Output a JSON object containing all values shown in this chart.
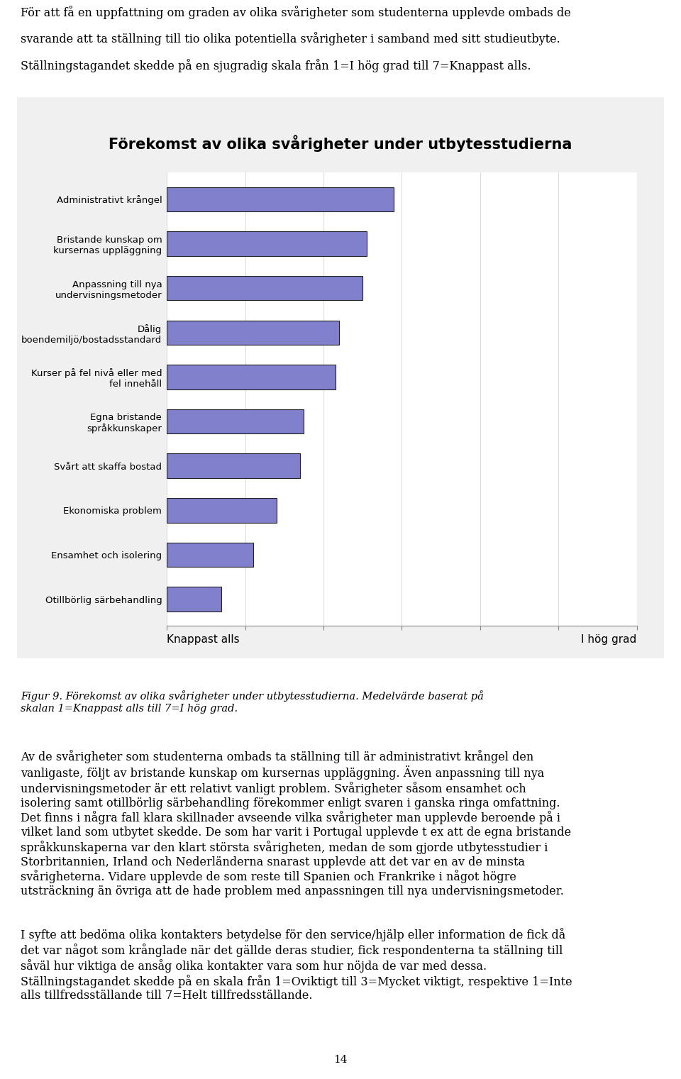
{
  "title": "Förekomst av olika svårigheter under utbytesstudierna",
  "categories": [
    "Administrativt krångel",
    "Bristande kunskap om\nkursernas uppläggning",
    "Anpassning till nya\nundervisningsmetoder",
    "Dålig\nboendemiljö/bostadsstandard",
    "Kurser på fel nivå eller med\nfel innehåll",
    "Egna bristande\nspråkkunskaper",
    "Svårt att skaffa bostad",
    "Ekonomiska problem",
    "Ensamhet och isolering",
    "Otillbörlig särbehandling"
  ],
  "values": [
    3.9,
    3.55,
    3.5,
    3.2,
    3.15,
    2.75,
    2.7,
    2.4,
    2.1,
    1.7
  ],
  "xlim": [
    1,
    7
  ],
  "xlabel_left": "Knappast alls",
  "xlabel_right": "I hög grad",
  "bar_color": "#8080CC",
  "bar_edgecolor": "#222222",
  "background_color": "#ffffff",
  "title_fontsize": 15,
  "label_fontsize": 10,
  "tick_fontsize": 10,
  "text_above_line1": "För att få en uppfattning om graden av olika svårigheter som studenterna upplevde ombads de",
  "text_above_line2": "svarande att ta ställning till tio olika potentiella svårigheter i samband med sitt studieutbyte.",
  "text_above_line3": "Ställningstagandet skedde på en sjugradig skala från 1=I hög grad till 7=Knappast alls.",
  "text_below_italic": "Figur 9. Förekomst av olika svårigheter under utbytesstudierna. Medelvärde baserat på\nskalan 1=Knappast alls till 7=I hög grad.",
  "text_below_normal": "Av de svårigheter som studenterna ombads ta ställning till är administrativt krångel den\nvanligaste, följt av bristande kunskap om kursernas uppläggning. Även anpassning till nya\nundervisningsmetoder är ett relativt vanligt problem. Svårigheter såsom ensamhet och\nisolering samt otillbörlig särbehandling förekommer enligt svaren i ganska ringa omfattning.\nDet finns i några fall klara skillnader avseende vilka svårigheter man upplevde beroende på i\nvilket land som utbytet skedde. De som har varit i Portugal upplevde t ex att de egna bristande\nspråkkunskaperna var den klart största svårigheten, medan de som gjorde utbytesstudier i\nStorbritannien, Irland och Nederländerna snarast upplevde att det var en av de minsta\nsvårigheterna. Vidare upplevde de som reste till Spanien och Frankrike i något högre\nutsträckning än övriga att de hade problem med anpassningen till nya undervisningsmetoder.",
  "text_last": "I syfte att bedöma olika kontakters betydelse för den service/hjälp eller information de fick då\ndet var något som krånglade när det gällde deras studier, fick respondenterna ta ställning till\nsåväl hur viktiga de ansåg olika kontakter vara som hur nöjda de var med dessa.\nStällningstagandet skedde på en skala från 1=Oviktigt till 3=Mycket viktigt, respektive 1=Inte\nalls tillfredsställande till 7=Helt tillfredsställande.",
  "page_number": "14"
}
